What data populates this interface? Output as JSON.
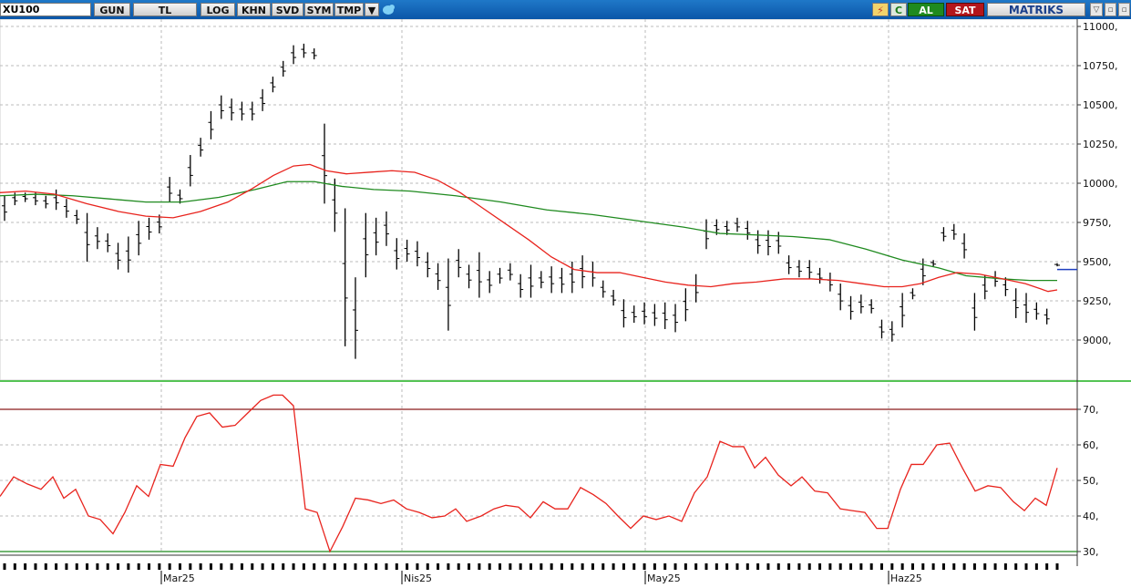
{
  "toolbar": {
    "symbol": "XU100",
    "buttons": [
      "GUN",
      "TL",
      "LOG",
      "KHN",
      "SVD",
      "SYM",
      "TMP"
    ],
    "right": {
      "c": "C",
      "buy": "AL",
      "sell": "SAT",
      "brand": "MATRIKS"
    },
    "icons": [
      "dropdown-arrow-icon",
      "twitter-bird-icon",
      "lightning-icon",
      "minimize-icon",
      "restore-icon"
    ]
  },
  "colors": {
    "ma_fast": "#e8231d",
    "ma_slow": "#1f8a1f",
    "rsi": "#e8231d",
    "overbought": "#8b1a1a",
    "oversold": "#1f8a1f",
    "bars": "#000000"
  },
  "price_axis": {
    "ticks": [
      "11000,",
      "10750,",
      "10500,",
      "10250,",
      "10000,",
      "9750,",
      "9500,",
      "9250,",
      "9000,"
    ]
  },
  "rsi_axis": {
    "ticks": [
      "70,",
      "60,",
      "50,",
      "40,",
      "30,"
    ]
  },
  "date_axis": {
    "labels": [
      "Mar25",
      "Nis25",
      "May25",
      "Haz25"
    ]
  },
  "chart_data": [
    {
      "type": "ohlc",
      "ylim": [
        8800,
        11020
      ],
      "bars": [
        [
          9760,
          9920
        ],
        [
          9860,
          9940
        ],
        [
          9880,
          9940
        ],
        [
          9860,
          9940
        ],
        [
          9840,
          9920
        ],
        [
          9830,
          9960
        ],
        [
          9780,
          9900
        ],
        [
          9740,
          9830
        ],
        [
          9500,
          9810
        ],
        [
          9580,
          9720
        ],
        [
          9560,
          9680
        ],
        [
          9450,
          9620
        ],
        [
          9430,
          9660
        ],
        [
          9540,
          9760
        ],
        [
          9640,
          9780
        ],
        [
          9680,
          9800
        ],
        [
          9880,
          10040
        ],
        [
          9870,
          9960
        ],
        [
          9980,
          10180
        ],
        [
          10170,
          10290
        ],
        [
          10280,
          10460
        ],
        [
          10410,
          10560
        ],
        [
          10400,
          10540
        ],
        [
          10400,
          10520
        ],
        [
          10400,
          10520
        ],
        [
          10460,
          10600
        ],
        [
          10580,
          10680
        ],
        [
          10680,
          10780
        ],
        [
          10760,
          10880
        ],
        [
          10800,
          10890
        ],
        [
          10790,
          10860
        ],
        [
          9870,
          10380
        ],
        [
          9690,
          10030
        ],
        [
          8960,
          9840
        ],
        [
          8880,
          9400
        ],
        [
          9400,
          9810
        ],
        [
          9540,
          9780
        ],
        [
          9600,
          9820
        ],
        [
          9450,
          9650
        ],
        [
          9500,
          9640
        ],
        [
          9470,
          9630
        ],
        [
          9400,
          9560
        ],
        [
          9320,
          9490
        ],
        [
          9060,
          9520
        ],
        [
          9400,
          9580
        ],
        [
          9330,
          9480
        ],
        [
          9270,
          9560
        ],
        [
          9300,
          9440
        ],
        [
          9360,
          9460
        ],
        [
          9380,
          9490
        ],
        [
          9270,
          9420
        ],
        [
          9270,
          9480
        ],
        [
          9330,
          9440
        ],
        [
          9300,
          9470
        ],
        [
          9300,
          9460
        ],
        [
          9300,
          9500
        ],
        [
          9330,
          9540
        ],
        [
          9340,
          9500
        ],
        [
          9270,
          9380
        ],
        [
          9220,
          9320
        ],
        [
          9080,
          9260
        ],
        [
          9110,
          9220
        ],
        [
          9100,
          9240
        ],
        [
          9090,
          9230
        ],
        [
          9070,
          9240
        ],
        [
          9050,
          9230
        ],
        [
          9120,
          9330
        ],
        [
          9240,
          9420
        ],
        [
          9580,
          9770
        ],
        [
          9670,
          9770
        ],
        [
          9670,
          9760
        ],
        [
          9690,
          9780
        ],
        [
          9640,
          9760
        ],
        [
          9550,
          9700
        ],
        [
          9540,
          9700
        ],
        [
          9550,
          9690
        ],
        [
          9420,
          9540
        ],
        [
          9400,
          9510
        ],
        [
          9390,
          9510
        ],
        [
          9360,
          9460
        ],
        [
          9310,
          9430
        ],
        [
          9190,
          9360
        ],
        [
          9130,
          9280
        ],
        [
          9170,
          9290
        ],
        [
          9170,
          9260
        ],
        [
          9010,
          9130
        ],
        [
          8990,
          9120
        ],
        [
          9080,
          9300
        ],
        [
          9260,
          9330
        ],
        [
          9350,
          9520
        ],
        [
          9470,
          9510
        ],
        [
          9630,
          9720
        ],
        [
          9640,
          9740
        ],
        [
          9520,
          9680
        ],
        [
          9060,
          9300
        ],
        [
          9260,
          9410
        ],
        [
          9340,
          9440
        ],
        [
          9280,
          9400
        ],
        [
          9140,
          9330
        ],
        [
          9110,
          9300
        ],
        [
          9130,
          9240
        ],
        [
          9100,
          9200
        ],
        [
          9470,
          9490
        ]
      ],
      "ma_fast": [
        [
          0,
          9940
        ],
        [
          28,
          9950
        ],
        [
          60,
          9930
        ],
        [
          95,
          9870
        ],
        [
          130,
          9820
        ],
        [
          160,
          9790
        ],
        [
          190,
          9780
        ],
        [
          220,
          9820
        ],
        [
          250,
          9880
        ],
        [
          275,
          9960
        ],
        [
          300,
          10050
        ],
        [
          322,
          10110
        ],
        [
          340,
          10120
        ],
        [
          358,
          10080
        ],
        [
          380,
          10060
        ],
        [
          405,
          10070
        ],
        [
          430,
          10080
        ],
        [
          455,
          10070
        ],
        [
          480,
          10020
        ],
        [
          505,
          9940
        ],
        [
          530,
          9840
        ],
        [
          555,
          9740
        ],
        [
          580,
          9640
        ],
        [
          605,
          9530
        ],
        [
          630,
          9450
        ],
        [
          655,
          9430
        ],
        [
          680,
          9430
        ],
        [
          705,
          9400
        ],
        [
          730,
          9370
        ],
        [
          755,
          9350
        ],
        [
          780,
          9340
        ],
        [
          805,
          9360
        ],
        [
          830,
          9370
        ],
        [
          860,
          9390
        ],
        [
          890,
          9390
        ],
        [
          920,
          9380
        ],
        [
          945,
          9360
        ],
        [
          970,
          9340
        ],
        [
          990,
          9340
        ],
        [
          1010,
          9360
        ],
        [
          1030,
          9400
        ],
        [
          1050,
          9430
        ],
        [
          1075,
          9420
        ],
        [
          1100,
          9390
        ],
        [
          1125,
          9360
        ],
        [
          1150,
          9310
        ],
        [
          1160,
          9320
        ]
      ],
      "ma_slow": [
        [
          0,
          9920
        ],
        [
          40,
          9930
        ],
        [
          80,
          9920
        ],
        [
          120,
          9900
        ],
        [
          160,
          9880
        ],
        [
          200,
          9880
        ],
        [
          240,
          9910
        ],
        [
          280,
          9960
        ],
        [
          315,
          10010
        ],
        [
          345,
          10010
        ],
        [
          375,
          9980
        ],
        [
          410,
          9960
        ],
        [
          450,
          9950
        ],
        [
          500,
          9920
        ],
        [
          550,
          9880
        ],
        [
          600,
          9830
        ],
        [
          650,
          9800
        ],
        [
          700,
          9760
        ],
        [
          750,
          9720
        ],
        [
          790,
          9680
        ],
        [
          830,
          9670
        ],
        [
          870,
          9660
        ],
        [
          910,
          9640
        ],
        [
          950,
          9580
        ],
        [
          990,
          9510
        ],
        [
          1030,
          9460
        ],
        [
          1060,
          9410
        ],
        [
          1100,
          9390
        ],
        [
          1130,
          9380
        ],
        [
          1160,
          9380
        ]
      ]
    },
    {
      "type": "line",
      "ylim": [
        28,
        77
      ],
      "overbought": 70,
      "oversold": 30,
      "values": [
        [
          0,
          45.5
        ],
        [
          15,
          51
        ],
        [
          30,
          49
        ],
        [
          45,
          47.5
        ],
        [
          58,
          51
        ],
        [
          70,
          45
        ],
        [
          83,
          47.5
        ],
        [
          97,
          40
        ],
        [
          110,
          39
        ],
        [
          124,
          35
        ],
        [
          137,
          41
        ],
        [
          150,
          48.5
        ],
        [
          163,
          45.5
        ],
        [
          176,
          54.5
        ],
        [
          190,
          54
        ],
        [
          203,
          62
        ],
        [
          216,
          68
        ],
        [
          230,
          69
        ],
        [
          244,
          65
        ],
        [
          258,
          65.5
        ],
        [
          272,
          69
        ],
        [
          286,
          72.5
        ],
        [
          300,
          74
        ],
        [
          310,
          74
        ],
        [
          322,
          71
        ],
        [
          335,
          42
        ],
        [
          348,
          41
        ],
        [
          362,
          30
        ],
        [
          376,
          37
        ],
        [
          390,
          45
        ],
        [
          404,
          44.5
        ],
        [
          418,
          43.5
        ],
        [
          432,
          44.5
        ],
        [
          446,
          42
        ],
        [
          460,
          41
        ],
        [
          474,
          39.5
        ],
        [
          488,
          40
        ],
        [
          500,
          42
        ],
        [
          512,
          38.5
        ],
        [
          528,
          40
        ],
        [
          542,
          42
        ],
        [
          555,
          43
        ],
        [
          569,
          42.5
        ],
        [
          582,
          39.5
        ],
        [
          596,
          44
        ],
        [
          609,
          42
        ],
        [
          623,
          42
        ],
        [
          637,
          48
        ],
        [
          651,
          46
        ],
        [
          665,
          43.5
        ],
        [
          678,
          40
        ],
        [
          692,
          36.5
        ],
        [
          706,
          40
        ],
        [
          720,
          39
        ],
        [
          734,
          40
        ],
        [
          748,
          38.5
        ],
        [
          762,
          46.5
        ],
        [
          776,
          51
        ],
        [
          790,
          61
        ],
        [
          804,
          59.5
        ],
        [
          816,
          59.5
        ],
        [
          828,
          53.5
        ],
        [
          840,
          56.5
        ],
        [
          854,
          51.5
        ],
        [
          868,
          48.5
        ],
        [
          880,
          51
        ],
        [
          894,
          47
        ],
        [
          908,
          46.5
        ],
        [
          922,
          42
        ],
        [
          935,
          41.5
        ],
        [
          949,
          41
        ],
        [
          962,
          36.5
        ],
        [
          974,
          36.5
        ],
        [
          988,
          47.5
        ],
        [
          1000,
          54.5
        ],
        [
          1013,
          54.5
        ],
        [
          1028,
          60
        ],
        [
          1042,
          60.5
        ],
        [
          1056,
          53.5
        ],
        [
          1070,
          47
        ],
        [
          1084,
          48.5
        ],
        [
          1098,
          48
        ],
        [
          1112,
          44
        ],
        [
          1124,
          41.5
        ],
        [
          1136,
          45
        ],
        [
          1148,
          43
        ],
        [
          1160,
          53.5
        ]
      ]
    }
  ]
}
